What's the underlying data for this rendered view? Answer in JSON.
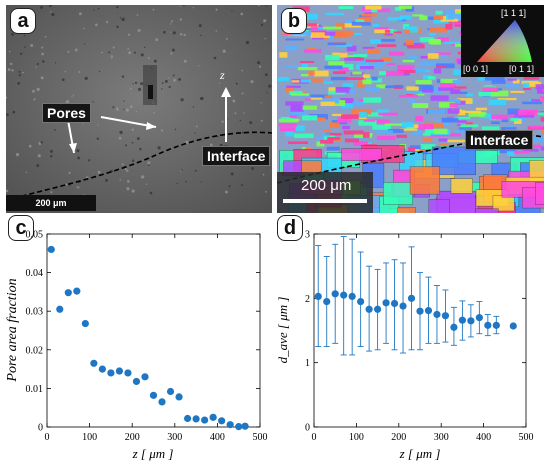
{
  "figure": {
    "panels": {
      "a": {
        "letter": "a",
        "pores_label": "Pores",
        "z_label": "z",
        "interface_label": "Interface",
        "scalebar": "200 μm"
      },
      "b": {
        "letter": "b",
        "scalebar": "200 μm",
        "interface_label": "Interface",
        "ipf": {
          "top": "[1 1 1]",
          "left": "[0 0 1]",
          "right": "[0 1 1]"
        }
      },
      "c": {
        "letter": "c"
      },
      "d": {
        "letter": "d"
      }
    }
  },
  "chart_data": [
    {
      "panel": "c",
      "type": "scatter",
      "ylabel": "Pore area fraction",
      "xlabel": "z [ μm ]",
      "xlim": [
        0,
        500
      ],
      "ylim": [
        0,
        0.05
      ],
      "xticks": [
        "0",
        "100",
        "200",
        "300",
        "400",
        "500"
      ],
      "yticks": [
        "0",
        "0.01",
        "0.02",
        "0.03",
        "0.04",
        "0.05"
      ],
      "color": "#1f77c4",
      "points": [
        {
          "x": 10,
          "y": 0.046
        },
        {
          "x": 30,
          "y": 0.0305
        },
        {
          "x": 50,
          "y": 0.0348
        },
        {
          "x": 70,
          "y": 0.0352
        },
        {
          "x": 90,
          "y": 0.0268
        },
        {
          "x": 110,
          "y": 0.0165
        },
        {
          "x": 130,
          "y": 0.015
        },
        {
          "x": 150,
          "y": 0.014
        },
        {
          "x": 170,
          "y": 0.0145
        },
        {
          "x": 190,
          "y": 0.014
        },
        {
          "x": 210,
          "y": 0.0118
        },
        {
          "x": 230,
          "y": 0.013
        },
        {
          "x": 250,
          "y": 0.0082
        },
        {
          "x": 270,
          "y": 0.0065
        },
        {
          "x": 290,
          "y": 0.0092
        },
        {
          "x": 310,
          "y": 0.0078
        },
        {
          "x": 330,
          "y": 0.0022
        },
        {
          "x": 350,
          "y": 0.0021
        },
        {
          "x": 370,
          "y": 0.0018
        },
        {
          "x": 390,
          "y": 0.0025
        },
        {
          "x": 410,
          "y": 0.0016
        },
        {
          "x": 430,
          "y": 0.0006
        },
        {
          "x": 450,
          "y": 0.0001
        },
        {
          "x": 465,
          "y": 0.0002
        }
      ]
    },
    {
      "panel": "d",
      "type": "scatter",
      "ylabel": "d_ave [ μm ]",
      "xlabel": "z [ μm ]",
      "xlim": [
        0,
        500
      ],
      "ylim": [
        0,
        3
      ],
      "xticks": [
        "0",
        "100",
        "200",
        "300",
        "400",
        "500"
      ],
      "yticks": [
        "0",
        "1",
        "2",
        "3"
      ],
      "color": "#1f77c4",
      "points": [
        {
          "x": 10,
          "y": 2.03,
          "lo": 1.25,
          "hi": 2.82
        },
        {
          "x": 30,
          "y": 1.95,
          "lo": 1.25,
          "hi": 2.65
        },
        {
          "x": 50,
          "y": 2.07,
          "lo": 1.3,
          "hi": 2.84
        },
        {
          "x": 70,
          "y": 2.05,
          "lo": 1.12,
          "hi": 2.96
        },
        {
          "x": 90,
          "y": 2.03,
          "lo": 1.12,
          "hi": 2.92
        },
        {
          "x": 110,
          "y": 1.95,
          "lo": 1.25,
          "hi": 2.72
        },
        {
          "x": 130,
          "y": 1.83,
          "lo": 1.18,
          "hi": 2.5
        },
        {
          "x": 150,
          "y": 1.83,
          "lo": 1.2,
          "hi": 2.45
        },
        {
          "x": 170,
          "y": 1.93,
          "lo": 1.3,
          "hi": 2.55
        },
        {
          "x": 190,
          "y": 1.92,
          "lo": 1.2,
          "hi": 2.6
        },
        {
          "x": 210,
          "y": 1.88,
          "lo": 1.15,
          "hi": 2.55
        },
        {
          "x": 230,
          "y": 2.0,
          "lo": 1.2,
          "hi": 2.8
        },
        {
          "x": 250,
          "y": 1.8,
          "lo": 1.2,
          "hi": 2.4
        },
        {
          "x": 270,
          "y": 1.81,
          "lo": 1.3,
          "hi": 2.33
        },
        {
          "x": 290,
          "y": 1.75,
          "lo": 1.3,
          "hi": 2.2
        },
        {
          "x": 310,
          "y": 1.73,
          "lo": 1.32,
          "hi": 2.13
        },
        {
          "x": 330,
          "y": 1.55,
          "lo": 1.27,
          "hi": 1.86
        },
        {
          "x": 350,
          "y": 1.66,
          "lo": 1.35,
          "hi": 1.96
        },
        {
          "x": 370,
          "y": 1.65,
          "lo": 1.4,
          "hi": 1.9
        },
        {
          "x": 390,
          "y": 1.7,
          "lo": 1.45,
          "hi": 1.95
        },
        {
          "x": 410,
          "y": 1.58,
          "lo": 1.42,
          "hi": 1.75
        },
        {
          "x": 430,
          "y": 1.58,
          "lo": 1.45,
          "hi": 1.72
        },
        {
          "x": 470,
          "y": 1.57,
          "lo": 1.57,
          "hi": 1.57
        }
      ]
    }
  ]
}
